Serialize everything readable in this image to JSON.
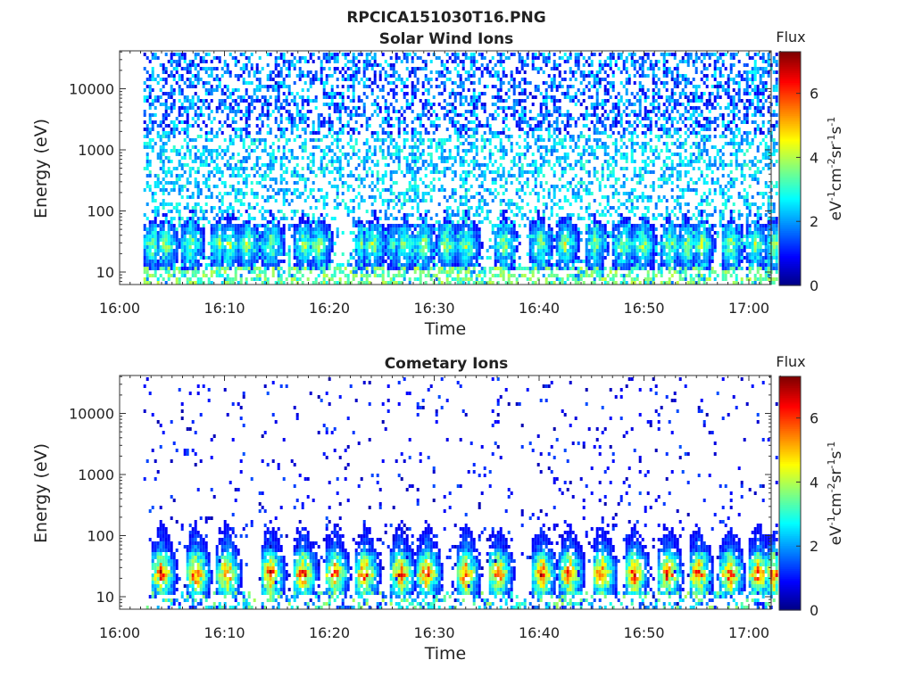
{
  "figure_title": "RPCICA151030T16.PNG",
  "chart_data": [
    {
      "type": "heatmap",
      "title": "Solar Wind Ions",
      "xlabel": "Time",
      "ylabel": "Energy (eV)",
      "x_ticks": [
        "16:00",
        "16:10",
        "16:20",
        "16:30",
        "16:40",
        "16:50",
        "17:00"
      ],
      "y_ticks": [
        "10",
        "100",
        "1000",
        "10000"
      ],
      "y_scale": "log",
      "y_range_eV": [
        6,
        40000
      ],
      "x_range": [
        "16:00",
        "17:03"
      ],
      "colorbar": {
        "title": "Flux",
        "label": "eV-1cm-2sr-1s-1",
        "ticks": [
          "0",
          "2",
          "4",
          "6"
        ],
        "range": [
          0,
          7.3
        ],
        "colormap": "jet"
      },
      "bursts_min": [
        2.2,
        3.4,
        5.8,
        8.6,
        9.5,
        11.2,
        13.5,
        16.6,
        18.0,
        22.3,
        23.2,
        25.5,
        26.2,
        28.0,
        30.2,
        32.1,
        35.7,
        39.1,
        41.5,
        44.3,
        47.0,
        48.9,
        51.5,
        53.2,
        54.5,
        57.3,
        59.6,
        61.5
      ],
      "burst_peak_energy_eV": 30,
      "peak_flux": 4.4
    },
    {
      "type": "heatmap",
      "title": "Cometary Ions",
      "xlabel": "Time",
      "ylabel": "Energy (eV)",
      "x_ticks": [
        "16:00",
        "16:10",
        "16:20",
        "16:30",
        "16:40",
        "16:50",
        "17:00"
      ],
      "y_ticks": [
        "10",
        "100",
        "1000",
        "10000"
      ],
      "y_scale": "log",
      "y_range_eV": [
        6,
        40000
      ],
      "x_range": [
        "16:00",
        "17:03"
      ],
      "colorbar": {
        "title": "Flux",
        "label": "eV-1cm-2sr-1s-1",
        "ticks": [
          "0",
          "2",
          "4",
          "6"
        ],
        "range": [
          0,
          7.3
        ],
        "colormap": "jet"
      },
      "bursts_min": [
        3.0,
        6.3,
        9.2,
        13.4,
        16.5,
        19.5,
        22.4,
        25.8,
        28.3,
        32.0,
        35.1,
        39.3,
        41.9,
        45.0,
        48.1,
        51.3,
        54.2,
        57.2,
        59.9,
        61.4
      ],
      "burst_peak_energy_eV": 25,
      "peak_flux": 6.8
    }
  ]
}
